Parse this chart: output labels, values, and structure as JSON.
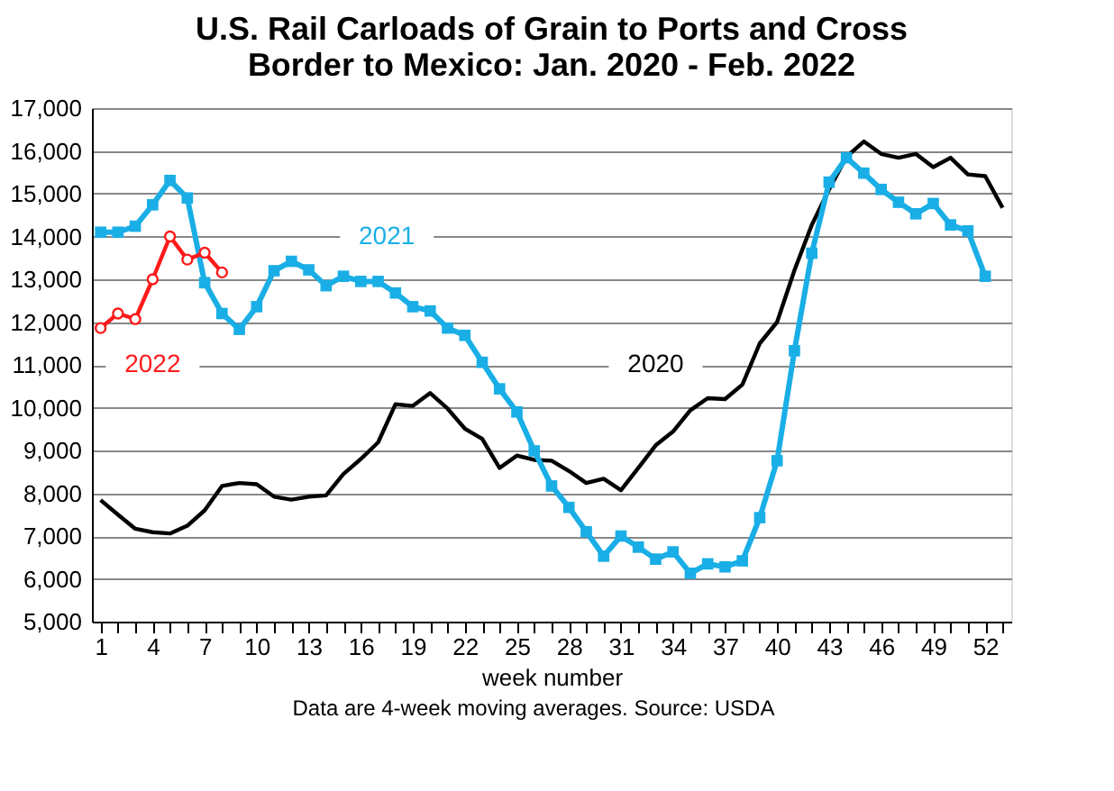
{
  "chart_data": {
    "type": "line",
    "title": "U.S. Rail Carloads of Grain to Ports and Cross Border to Mexico: Jan. 2020 - Feb. 2022",
    "xlabel": "week number",
    "annotations": [
      "Data are 4-week moving averages.  Source: USDA"
    ],
    "x": [
      1,
      2,
      3,
      4,
      5,
      6,
      7,
      8,
      9,
      10,
      11,
      12,
      13,
      14,
      15,
      16,
      17,
      18,
      19,
      20,
      21,
      22,
      23,
      24,
      25,
      26,
      27,
      28,
      29,
      30,
      31,
      32,
      33,
      34,
      35,
      36,
      37,
      38,
      39,
      40,
      41,
      42,
      43,
      44,
      45,
      46,
      47,
      48,
      49,
      50,
      51,
      52,
      53
    ],
    "series": [
      {
        "name": "2020",
        "color": "#000000",
        "marker": "none",
        "values": [
          7840,
          7500,
          7170,
          7090,
          7060,
          7240,
          7600,
          8170,
          8240,
          8210,
          7920,
          7850,
          7920,
          7950,
          8450,
          8800,
          9190,
          10080,
          10040,
          10340,
          9980,
          9510,
          9270,
          8590,
          8880,
          8780,
          8760,
          8520,
          8240,
          8340,
          8070,
          8590,
          9120,
          9440,
          9940,
          10220,
          10200,
          10540,
          11500,
          12000,
          13210,
          14270,
          15100,
          15860,
          16220,
          15930,
          15840,
          15930,
          15620,
          15840,
          15450,
          15410,
          14670
        ]
      },
      {
        "name": "2021",
        "color": "#1aaee6",
        "marker": "square",
        "values": [
          14100,
          14100,
          14240,
          14740,
          15310,
          14900,
          12920,
          12200,
          11830,
          12360,
          13200,
          13420,
          13220,
          12850,
          13070,
          12950,
          12950,
          12680,
          12360,
          12260,
          11860,
          11690,
          11060,
          10440,
          9900,
          8990,
          8170,
          7670,
          7100,
          6530,
          7000,
          6740,
          6460,
          6630,
          6130,
          6350,
          6280,
          6420,
          7430,
          8760,
          11330,
          13610,
          15270,
          15840,
          15480,
          15100,
          14800,
          14530,
          14770,
          14270,
          14130,
          13070,
          null
        ]
      },
      {
        "name": "2022",
        "color": "#ff1a1a",
        "marker": "circle",
        "values": [
          11860,
          12200,
          12070,
          13000,
          14000,
          13460,
          13620,
          13160,
          null,
          null,
          null,
          null,
          null,
          null,
          null,
          null,
          null,
          null,
          null,
          null,
          null,
          null,
          null,
          null,
          null,
          null,
          null,
          null,
          null,
          null,
          null,
          null,
          null,
          null,
          null,
          null,
          null,
          null,
          null,
          null,
          null,
          null,
          null,
          null,
          null,
          null,
          null,
          null,
          null,
          null,
          null,
          null,
          null
        ]
      }
    ],
    "xlim": [
      0.5,
      53.5
    ],
    "xticks": [
      1,
      {
        "value": 2,
        "label": null
      },
      {
        "value": 3,
        "label": null
      },
      4,
      {
        "value": 5,
        "label": null
      },
      {
        "value": 6,
        "label": null
      },
      7,
      {
        "value": 8,
        "label": null
      },
      {
        "value": 9,
        "label": null
      },
      10,
      {
        "value": 11,
        "label": null
      },
      {
        "value": 12,
        "label": null
      },
      13,
      {
        "value": 14,
        "label": null
      },
      {
        "value": 15,
        "label": null
      },
      16,
      {
        "value": 17,
        "label": null
      },
      {
        "value": 18,
        "label": null
      },
      19,
      {
        "value": 20,
        "label": null
      },
      {
        "value": 21,
        "label": null
      },
      22,
      {
        "value": 23,
        "label": null
      },
      {
        "value": 24,
        "label": null
      },
      25,
      {
        "value": 26,
        "label": null
      },
      {
        "value": 27,
        "label": null
      },
      28,
      {
        "value": 29,
        "label": null
      },
      {
        "value": 30,
        "label": null
      },
      31,
      {
        "value": 32,
        "label": null
      },
      {
        "value": 33,
        "label": null
      },
      34,
      {
        "value": 35,
        "label": null
      },
      {
        "value": 36,
        "label": null
      },
      37,
      {
        "value": 38,
        "label": null
      },
      {
        "value": 39,
        "label": null
      },
      40,
      {
        "value": 41,
        "label": null
      },
      {
        "value": 42,
        "label": null
      },
      43,
      {
        "value": 44,
        "label": null
      },
      {
        "value": 45,
        "label": null
      },
      46,
      {
        "value": 47,
        "label": null
      },
      {
        "value": 48,
        "label": null
      },
      49,
      {
        "value": 50,
        "label": null
      },
      {
        "value": 51,
        "label": null
      },
      52,
      {
        "value": 53,
        "label": null
      }
    ],
    "ylim": [
      5000,
      17000
    ],
    "yticks": [
      {
        "value": 5000,
        "label": "5,000"
      },
      {
        "value": 6000,
        "label": "6,000"
      },
      {
        "value": 7000,
        "label": "7,000"
      },
      {
        "value": 8000,
        "label": "8,000"
      },
      {
        "value": 9000,
        "label": "9,000"
      },
      {
        "value": 10000,
        "label": "10,000"
      },
      {
        "value": 11000,
        "label": "11,000"
      },
      {
        "value": 12000,
        "label": "12,000"
      },
      {
        "value": 13000,
        "label": "13,000"
      },
      {
        "value": 14000,
        "label": "14,000"
      },
      {
        "value": 15000,
        "label": "15,000"
      },
      {
        "value": 16000,
        "label": "16,000"
      },
      {
        "value": 17000,
        "label": "17,000"
      }
    ],
    "grid": "y",
    "legend": false,
    "line_style": "solid"
  }
}
